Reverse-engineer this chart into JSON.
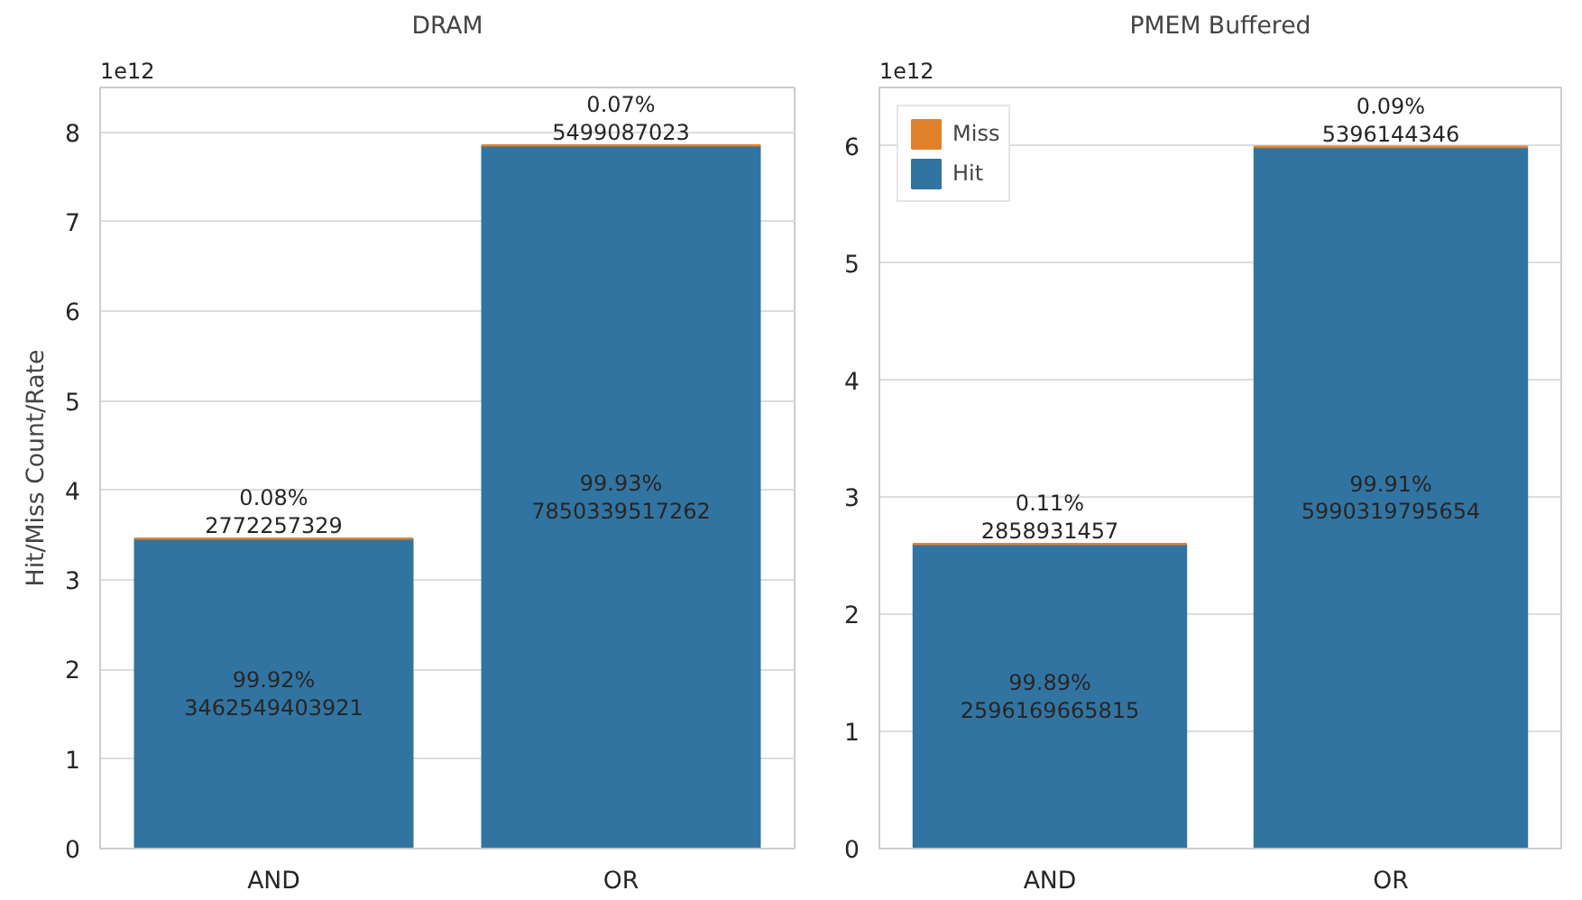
{
  "chart_data": [
    {
      "type": "bar",
      "title": "DRAM",
      "ylabel": "Hit/Miss Count/Rate",
      "categories": [
        "AND",
        "OR"
      ],
      "stacked": true,
      "ylim": [
        0,
        8.5
      ],
      "yticks": [
        0,
        1,
        2,
        3,
        4,
        5,
        6,
        7,
        8
      ],
      "grid": "y",
      "annotations": [
        "1e12",
        "99.92%\n3462549403921",
        "99.93%\n7850339517262",
        "0.08%\n2772257329",
        "0.07%\n5499087023"
      ],
      "series": [
        {
          "color": "#3274a1",
          "values": [
            3.46,
            7.85
          ]
        },
        {
          "color": "#e1812c",
          "values": [
            0.003,
            0.005
          ]
        }
      ]
    },
    {
      "type": "bar",
      "title": "PMEM Buffered",
      "categories": [
        "AND",
        "OR"
      ],
      "stacked": true,
      "ylim": [
        0,
        6.5
      ],
      "yticks": [
        0,
        1,
        2,
        3,
        4,
        5,
        6
      ],
      "grid": "y",
      "legend": "top left",
      "annotations": [
        "1e12",
        "99.89%\n2596169665815",
        "99.91%\n5990319795654",
        "0.11%\n2858931457",
        "0.09%\n5396144346"
      ],
      "series": [
        {
          "name": "Hit",
          "color": "#3274a1",
          "values": [
            2.6,
            5.99
          ]
        },
        {
          "name": "Miss",
          "color": "#e1812c",
          "values": [
            0.003,
            0.005
          ]
        }
      ]
    }
  ]
}
